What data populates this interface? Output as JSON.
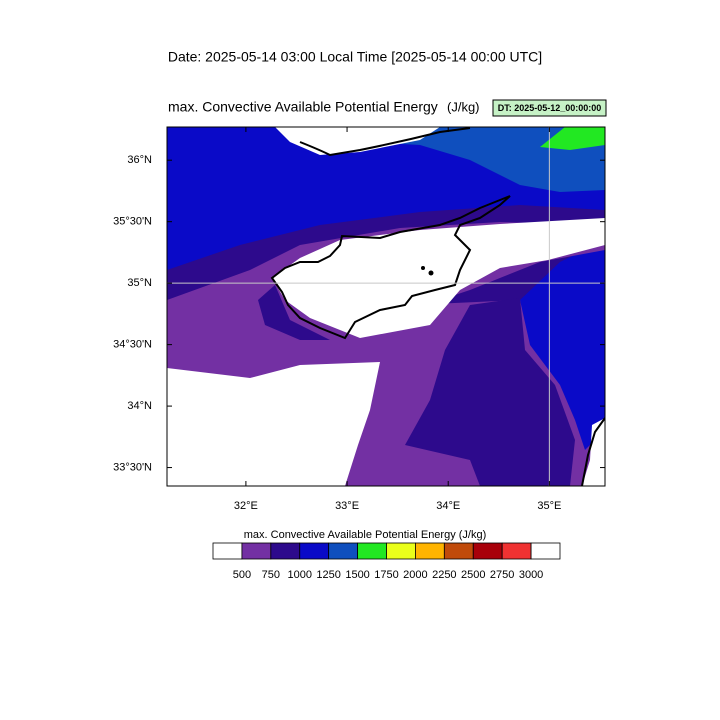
{
  "header": {
    "title": "Date: 2025-05-14  03:00 Local Time [2025-05-14  00:00 UTC]"
  },
  "map": {
    "title": "max. Convective Available Potential Energy",
    "units": "(J/kg)",
    "run_label": "DT: 2025-05-12_00:00:00",
    "lon_range": [
      31.22,
      35.55
    ],
    "lat_range": [
      33.35,
      36.27
    ],
    "lon_ticks": [
      {
        "value": 32,
        "label": "32°E"
      },
      {
        "value": 33,
        "label": "33°E"
      },
      {
        "value": 34,
        "label": "34°E"
      },
      {
        "value": 35,
        "label": "35°E"
      }
    ],
    "lat_ticks": [
      {
        "value": 36,
        "label": "36°N"
      },
      {
        "value": 35.5,
        "label": "35°30'N"
      },
      {
        "value": 35,
        "label": "35°N"
      },
      {
        "value": 34.5,
        "label": "34°30'N"
      },
      {
        "value": 34,
        "label": "34°N"
      },
      {
        "value": 33.5,
        "label": "33°30'N"
      }
    ],
    "grid_lon": [
      35
    ],
    "grid_lat": [
      35
    ]
  },
  "colorbar": {
    "title": "max. Convective Available Potential Energy  (J/kg)",
    "levels": [
      500,
      750,
      1000,
      1250,
      1500,
      1750,
      2000,
      2250,
      2500,
      2750,
      3000
    ],
    "colors": [
      "#ffffff",
      "#7330a3",
      "#2d0a8c",
      "#0a0ac8",
      "#0f4fbe",
      "#22e822",
      "#eaff1a",
      "#ffb400",
      "#c04a0a",
      "#a8000a",
      "#f03232",
      "#ffffff"
    ]
  }
}
